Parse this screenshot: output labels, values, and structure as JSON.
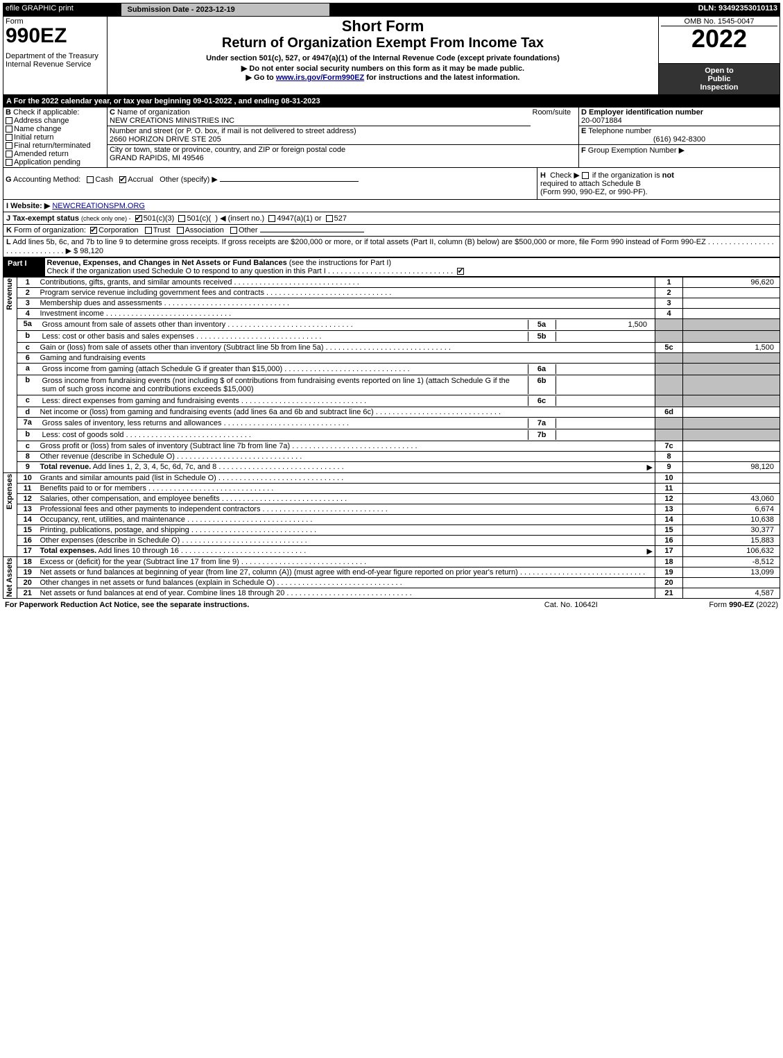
{
  "topbar": {
    "efile": "efile GRAPHIC print",
    "submission_label": "Submission Date - 2023-12-19",
    "dln": "DLN: 93492353010113"
  },
  "header": {
    "form_word": "Form",
    "form_number": "990EZ",
    "dept": "Department of the Treasury\nInternal Revenue Service",
    "short_form": "Short Form",
    "title": "Return of Organization Exempt From Income Tax",
    "subtitle": "Under section 501(c), 527, or 4947(a)(1) of the Internal Revenue Code (except private foundations)",
    "note1": "▶ Do not enter social security numbers on this form as it may be made public.",
    "note2_prefix": "▶ Go to ",
    "note2_link": "www.irs.gov/Form990EZ",
    "note2_suffix": " for instructions and the latest information.",
    "omb": "OMB No. 1545-0047",
    "year": "2022",
    "inspect_l1": "Open to",
    "inspect_l2": "Public",
    "inspect_l3": "Inspection"
  },
  "lineA": "A  For the 2022 calendar year, or tax year beginning 09-01-2022 , and ending 08-31-2023",
  "sectionB": {
    "label": "B",
    "check_label": "Check if applicable:",
    "items": [
      "Address change",
      "Name change",
      "Initial return",
      "Final return/terminated",
      "Amended return",
      "Application pending"
    ]
  },
  "sectionC": {
    "label": "C",
    "name_label": "Name of organization",
    "name": "NEW CREATIONS MINISTRIES INC",
    "street_label": "Number and street (or P. O. box, if mail is not delivered to street address)",
    "street": "2660 HORIZON DRIVE STE 205",
    "room_label": "Room/suite",
    "city_label": "City or town, state or province, country, and ZIP or foreign postal code",
    "city": "GRAND RAPIDS, MI  49546"
  },
  "sectionD": {
    "label": "D",
    "title": "Employer identification number",
    "value": "20-0071884"
  },
  "sectionE": {
    "label": "E",
    "title": "Telephone number",
    "value": "(616) 942-8300"
  },
  "sectionF": {
    "label": "F",
    "title": "Group Exemption Number",
    "arrow": "▶"
  },
  "lineG": {
    "label": "G",
    "title": "Accounting Method:",
    "opt_cash": "Cash",
    "opt_accrual": "Accrual",
    "opt_other": "Other (specify) ▶"
  },
  "lineH": {
    "label": "H",
    "text1_prefix": "Check ▶ ",
    "text1_suffix": " if the organization is ",
    "not": "not",
    "text2": "required to attach Schedule B",
    "text3": "(Form 990, 990-EZ, or 990-PF)."
  },
  "lineI": {
    "label": "I",
    "title": "Website: ▶",
    "value": "NEWCREATIONSPM.ORG"
  },
  "lineJ": {
    "label": "J",
    "title": "Tax-exempt status",
    "small": "(check only one) -",
    "opt1": "501(c)(3)",
    "opt2_pre": "501(c)(",
    "opt2_mid": ") ◀ (insert no.)",
    "opt3": "4947(a)(1) or",
    "opt4": "527"
  },
  "lineK": {
    "label": "K",
    "title": "Form of organization:",
    "opts": [
      "Corporation",
      "Trust",
      "Association",
      "Other"
    ]
  },
  "lineL": {
    "label": "L",
    "text": "Add lines 5b, 6c, and 7b to line 9 to determine gross receipts. If gross receipts are $200,000 or more, or if total assets (Part II, column (B) below) are $500,000 or more, file Form 990 instead of Form 990-EZ",
    "arrow": "▶ $",
    "value": "98,120"
  },
  "part1": {
    "label": "Part I",
    "title": "Revenue, Expenses, and Changes in Net Assets or Fund Balances",
    "title_suffix": " (see the instructions for Part I)",
    "check_line": "Check if the organization used Schedule O to respond to any question in this Part I"
  },
  "sections": {
    "revenue_label": "Revenue",
    "expenses_label": "Expenses",
    "netassets_label": "Net Assets"
  },
  "rows": [
    {
      "n": "1",
      "desc": "Contributions, gifts, grants, and similar amounts received",
      "box": "1",
      "val": "96,620"
    },
    {
      "n": "2",
      "desc": "Program service revenue including government fees and contracts",
      "box": "2",
      "val": ""
    },
    {
      "n": "3",
      "desc": "Membership dues and assessments",
      "box": "3",
      "val": ""
    },
    {
      "n": "4",
      "desc": "Investment income",
      "box": "4",
      "val": ""
    },
    {
      "n": "5a",
      "desc": "Gross amount from sale of assets other than inventory",
      "midbox": "5a",
      "midval": "1,500",
      "box": "",
      "val": "",
      "gray": true
    },
    {
      "n": "b",
      "desc": "Less: cost or other basis and sales expenses",
      "midbox": "5b",
      "midval": "",
      "box": "",
      "val": "",
      "gray": true
    },
    {
      "n": "c",
      "desc": "Gain or (loss) from sale of assets other than inventory (Subtract line 5b from line 5a)",
      "box": "5c",
      "val": "1,500"
    },
    {
      "n": "6",
      "desc": "Gaming and fundraising events",
      "box": "",
      "val": "",
      "gray": true,
      "nodots": true
    },
    {
      "n": "a",
      "desc": "Gross income from gaming (attach Schedule G if greater than $15,000)",
      "midbox": "6a",
      "midval": "",
      "box": "",
      "val": "",
      "gray": true
    },
    {
      "n": "b",
      "desc": "Gross income from fundraising events (not including $                      of contributions from fundraising events reported on line 1) (attach Schedule G if the sum of such gross income and contributions exceeds $15,000)",
      "midbox": "6b",
      "midval": "",
      "box": "",
      "val": "",
      "gray": true,
      "nodots": true
    },
    {
      "n": "c",
      "desc": "Less: direct expenses from gaming and fundraising events",
      "midbox": "6c",
      "midval": "",
      "box": "",
      "val": "",
      "gray": true
    },
    {
      "n": "d",
      "desc": "Net income or (loss) from gaming and fundraising events (add lines 6a and 6b and subtract line 6c)",
      "box": "6d",
      "val": ""
    },
    {
      "n": "7a",
      "desc": "Gross sales of inventory, less returns and allowances",
      "midbox": "7a",
      "midval": "",
      "box": "",
      "val": "",
      "gray": true
    },
    {
      "n": "b",
      "desc": "Less: cost of goods sold",
      "midbox": "7b",
      "midval": "",
      "box": "",
      "val": "",
      "gray": true
    },
    {
      "n": "c",
      "desc": "Gross profit or (loss) from sales of inventory (Subtract line 7b from line 7a)",
      "box": "7c",
      "val": ""
    },
    {
      "n": "8",
      "desc": "Other revenue (describe in Schedule O)",
      "box": "8",
      "val": ""
    },
    {
      "n": "9",
      "desc": "Total revenue. Add lines 1, 2, 3, 4, 5c, 6d, 7c, and 8",
      "box": "9",
      "val": "98,120",
      "boldline": true,
      "arrow": "▶"
    },
    {
      "n": "10",
      "desc": "Grants and similar amounts paid (list in Schedule O)",
      "box": "10",
      "val": ""
    },
    {
      "n": "11",
      "desc": "Benefits paid to or for members",
      "box": "11",
      "val": ""
    },
    {
      "n": "12",
      "desc": "Salaries, other compensation, and employee benefits",
      "box": "12",
      "val": "43,060"
    },
    {
      "n": "13",
      "desc": "Professional fees and other payments to independent contractors",
      "box": "13",
      "val": "6,674"
    },
    {
      "n": "14",
      "desc": "Occupancy, rent, utilities, and maintenance",
      "box": "14",
      "val": "10,638"
    },
    {
      "n": "15",
      "desc": "Printing, publications, postage, and shipping",
      "box": "15",
      "val": "30,377"
    },
    {
      "n": "16",
      "desc": "Other expenses (describe in Schedule O)",
      "box": "16",
      "val": "15,883"
    },
    {
      "n": "17",
      "desc": "Total expenses. Add lines 10 through 16",
      "box": "17",
      "val": "106,632",
      "boldline": true,
      "arrow": "▶"
    },
    {
      "n": "18",
      "desc": "Excess or (deficit) for the year (Subtract line 17 from line 9)",
      "box": "18",
      "val": "-8,512"
    },
    {
      "n": "19",
      "desc": "Net assets or fund balances at beginning of year (from line 27, column (A)) (must agree with end-of-year figure reported on prior year's return)",
      "box": "19",
      "val": "13,099"
    },
    {
      "n": "20",
      "desc": "Other changes in net assets or fund balances (explain in Schedule O)",
      "box": "20",
      "val": ""
    },
    {
      "n": "21",
      "desc": "Net assets or fund balances at end of year. Combine lines 18 through 20",
      "box": "21",
      "val": "4,587"
    }
  ],
  "footer": {
    "left": "For Paperwork Reduction Act Notice, see the separate instructions.",
    "center": "Cat. No. 10642I",
    "right_pre": "Form ",
    "right_form": "990-EZ",
    "right_year": " (2022)"
  }
}
